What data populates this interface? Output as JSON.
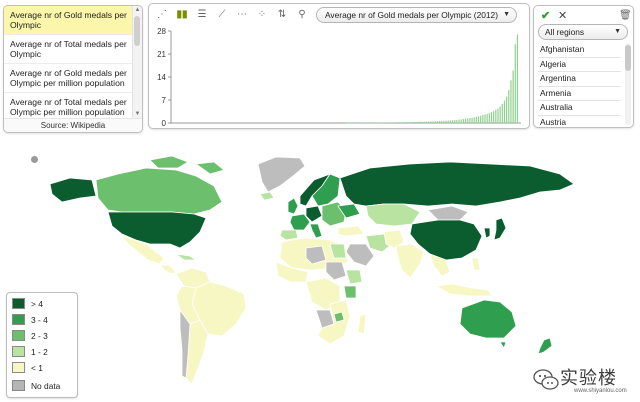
{
  "indicator_panel": {
    "items": [
      {
        "label": "Average nr of Gold medals per Olympic",
        "selected": true
      },
      {
        "label": "Average nr of Total medals per Olympic",
        "selected": false
      },
      {
        "label": "Average nr of Gold medals per Olympic per million population",
        "selected": false
      },
      {
        "label": "Average nr of Total medals per Olympic per million population",
        "selected": false
      }
    ],
    "source": "Source: Wikipedia"
  },
  "chart_toolbar": {
    "icons": [
      "scatter-icon",
      "bar-chart-icon",
      "horizontal-bar-icon",
      "line-chart-icon",
      "dotted-line-icon",
      "bubble-icon",
      "sort-icon",
      "zoom-icon"
    ],
    "metric_dropdown": "Average nr of Gold medals per Olympic (2012)"
  },
  "chart_data": {
    "type": "bar",
    "title": "",
    "xlabel": "",
    "ylabel": "",
    "ylim": [
      0,
      28
    ],
    "yticks": [
      0,
      7,
      14,
      21,
      28
    ],
    "bar_count": 160,
    "values": [
      0,
      0,
      0,
      0,
      0,
      0,
      0,
      0,
      0,
      0,
      0,
      0,
      0,
      0,
      0,
      0,
      0,
      0,
      0,
      0,
      0,
      0,
      0,
      0,
      0,
      0,
      0,
      0,
      0,
      0,
      0,
      0,
      0,
      0,
      0,
      0,
      0,
      0,
      0,
      0,
      0,
      0,
      0,
      0,
      0,
      0,
      0,
      0,
      0,
      0,
      0,
      0,
      0,
      0,
      0,
      0,
      0,
      0,
      0,
      0,
      0,
      0,
      0,
      0,
      0,
      0,
      0,
      0,
      0,
      0,
      0,
      0,
      0,
      0,
      0,
      0,
      0,
      0,
      0,
      0,
      0.02,
      0.03,
      0.03,
      0.04,
      0.04,
      0.05,
      0.05,
      0.06,
      0.06,
      0.07,
      0.08,
      0.08,
      0.09,
      0.1,
      0.1,
      0.11,
      0.12,
      0.13,
      0.14,
      0.15,
      0.16,
      0.17,
      0.18,
      0.19,
      0.2,
      0.21,
      0.22,
      0.24,
      0.25,
      0.27,
      0.29,
      0.3,
      0.32,
      0.34,
      0.36,
      0.38,
      0.4,
      0.42,
      0.45,
      0.48,
      0.5,
      0.53,
      0.56,
      0.6,
      0.63,
      0.67,
      0.7,
      0.75,
      0.8,
      0.85,
      0.9,
      0.95,
      1.0,
      1.1,
      1.2,
      1.3,
      1.4,
      1.5,
      1.6,
      1.75,
      1.9,
      2.0,
      2.2,
      2.4,
      2.6,
      2.8,
      3.0,
      3.3,
      3.6,
      4.0,
      4.4,
      5.0,
      5.8,
      6.8,
      8.0,
      10.0,
      13.0,
      16.0,
      24.0,
      27.0
    ],
    "bar_color": "#8fd08f",
    "axis_color": "#9a9a9a"
  },
  "country_panel": {
    "region_dropdown": "All regions",
    "countries": [
      "Afghanistan",
      "Algeria",
      "Argentina",
      "Armenia",
      "Australia",
      "Austria"
    ]
  },
  "map": {
    "colors": {
      "gt4": "#0b5c2e",
      "c3_4": "#2f9e4f",
      "c2_3": "#6cbf6c",
      "c1_2": "#b9e3a0",
      "lt1": "#f7f7c4",
      "nodata": "#bdbdbd",
      "border": "#ffffff"
    }
  },
  "legend": {
    "items": [
      {
        "label": "> 4",
        "color": "#0b5c2e"
      },
      {
        "label": "3 - 4",
        "color": "#2f9e4f"
      },
      {
        "label": "2 - 3",
        "color": "#6cbf6c"
      },
      {
        "label": "1 - 2",
        "color": "#b9e3a0"
      },
      {
        "label": "< 1",
        "color": "#f7f7c4"
      },
      {
        "label": "No data",
        "color": "#b5b5b5"
      }
    ]
  },
  "watermark": {
    "text": "实验楼",
    "url": "www.shiyanlou.com"
  }
}
